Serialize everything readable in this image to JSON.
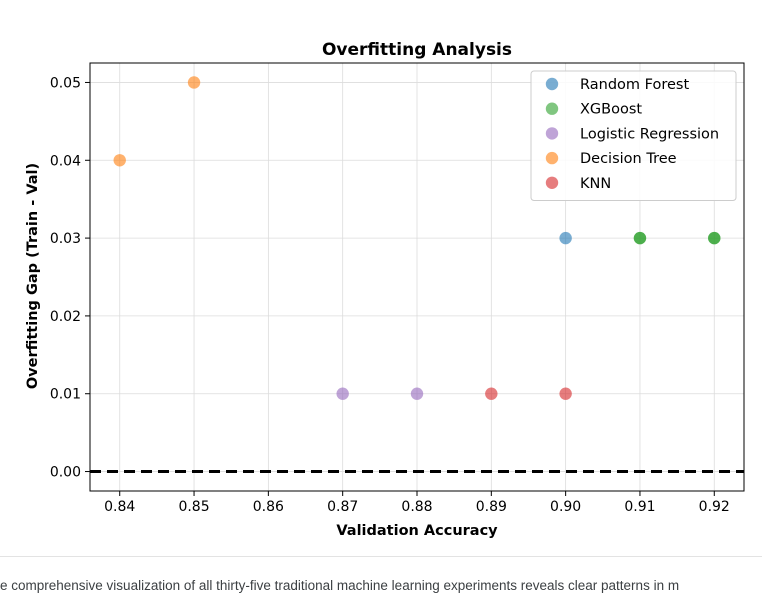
{
  "chart_data": {
    "type": "scatter",
    "title": "Overfitting Analysis",
    "xlabel": "Validation Accuracy",
    "ylabel": "Overfitting Gap (Train - Val)",
    "xlim": [
      0.836,
      0.924
    ],
    "ylim": [
      -0.0025,
      0.0525
    ],
    "xticks": [
      "0.84",
      "0.85",
      "0.86",
      "0.87",
      "0.88",
      "0.89",
      "0.90",
      "0.91",
      "0.92"
    ],
    "yticks": [
      "0.00",
      "0.01",
      "0.02",
      "0.03",
      "0.04",
      "0.05"
    ],
    "grid": true,
    "legend_position": "top-right",
    "reference_line": {
      "y": 0.0,
      "style": "dashed",
      "color": "#000000"
    },
    "series": [
      {
        "name": "Random Forest",
        "color": "#1f77b4",
        "points": [
          [
            0.9,
            0.03
          ]
        ]
      },
      {
        "name": "XGBoost",
        "color": "#2ca02c",
        "points": [
          [
            0.91,
            0.03
          ],
          [
            0.91,
            0.03
          ],
          [
            0.92,
            0.03
          ],
          [
            0.92,
            0.03
          ]
        ]
      },
      {
        "name": "Logistic Regression",
        "color": "#9467bd",
        "points": [
          [
            0.87,
            0.01
          ],
          [
            0.88,
            0.01
          ]
        ]
      },
      {
        "name": "Decision Tree",
        "color": "#ff7f0e",
        "points": [
          [
            0.84,
            0.04
          ],
          [
            0.85,
            0.05
          ]
        ]
      },
      {
        "name": "KNN",
        "color": "#d62728",
        "points": [
          [
            0.89,
            0.01
          ],
          [
            0.9,
            0.01
          ]
        ]
      }
    ]
  },
  "caption": "e comprehensive visualization of all thirty-five traditional machine learning experiments reveals clear patterns in m"
}
